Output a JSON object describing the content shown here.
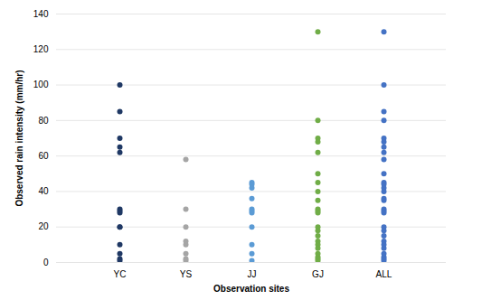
{
  "chart_data": {
    "type": "scatter",
    "x_label": "Observation sites",
    "y_label": "Observed rain intensity (mm/hr)",
    "categories": [
      "YC",
      "YS",
      "JJ",
      "GJ",
      "ALL"
    ],
    "values": [
      [
        100,
        85,
        70,
        65,
        62,
        30,
        29,
        28,
        20,
        20,
        10,
        5,
        2,
        1
      ],
      [
        58,
        30,
        20,
        12,
        10,
        5,
        2,
        1
      ],
      [
        45,
        44,
        42,
        36,
        30,
        29,
        28,
        20,
        10,
        5,
        1
      ],
      [
        130,
        80,
        70,
        68,
        62,
        50,
        45,
        40,
        35,
        30,
        29,
        28,
        20,
        18,
        15,
        12,
        10,
        8,
        5,
        3,
        2,
        1
      ],
      [
        130,
        100,
        85,
        80,
        70,
        68,
        65,
        62,
        58,
        50,
        45,
        44,
        42,
        40,
        36,
        35,
        30,
        29,
        28,
        20,
        18,
        15,
        12,
        10,
        8,
        5,
        3,
        2,
        1
      ]
    ],
    "colors": [
      "#1f3864",
      "#a5a5a5",
      "#5b9bd5",
      "#70ad47",
      "#4472c4"
    ],
    "marker": "circle",
    "ylim": [
      0,
      140
    ],
    "yticks": [
      0,
      20,
      40,
      60,
      80,
      100,
      120,
      140
    ],
    "grid": true
  }
}
